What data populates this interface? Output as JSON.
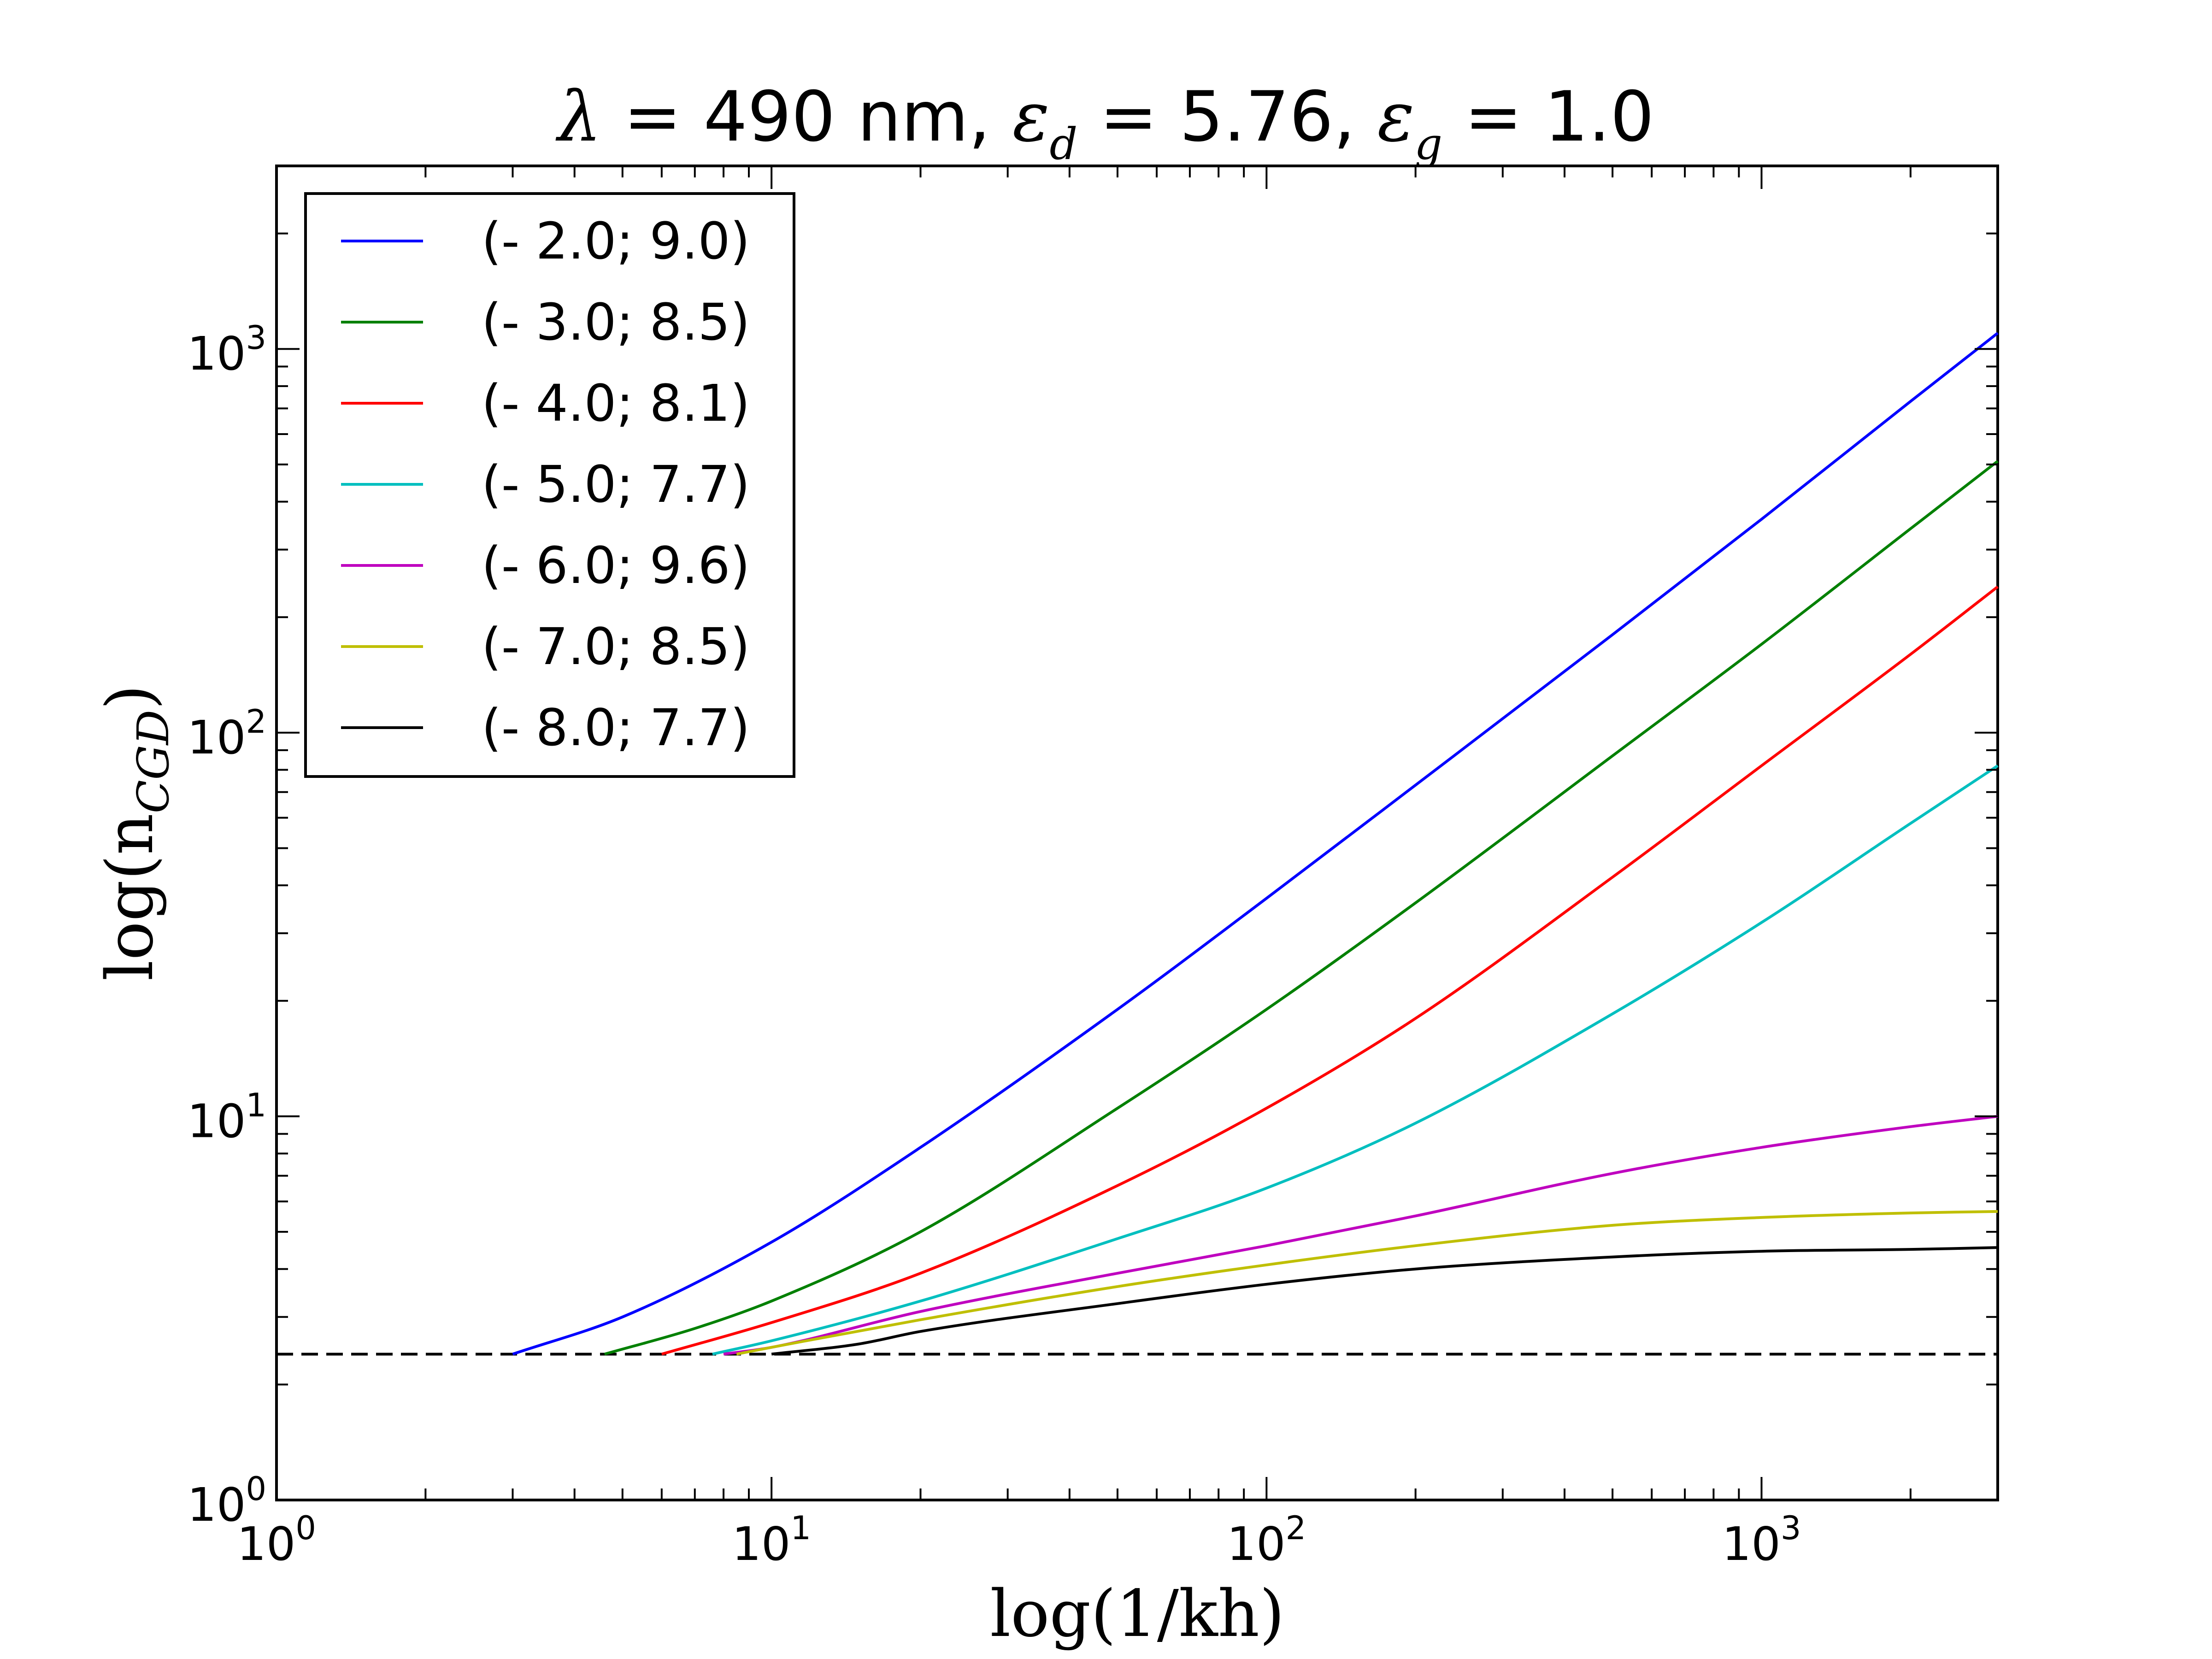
{
  "chart_data": {
    "type": "line",
    "title": {
      "lambda_symbol": "λ",
      "lambda_value": " = 490 nm, ",
      "eps_symbol": "ε",
      "eps_d_sub": "d",
      "eps_d_value": " = 5.76, ",
      "eps_g_sub": "g",
      "eps_g_value": " = 1.0"
    },
    "xlabel": "log(1/kh)",
    "ylabel": "log(n",
    "ylabel_sub": "CGD",
    "ylabel_close": ")",
    "xscale": "log",
    "yscale": "log",
    "xlim": [
      1,
      3000
    ],
    "ylim": [
      1,
      3000
    ],
    "x_ticks": [
      {
        "value": 1,
        "base": "10",
        "exp": "0"
      },
      {
        "value": 10,
        "base": "10",
        "exp": "1"
      },
      {
        "value": 100,
        "base": "10",
        "exp": "2"
      },
      {
        "value": 1000,
        "base": "10",
        "exp": "3"
      }
    ],
    "y_ticks": [
      {
        "value": 1,
        "base": "10",
        "exp": "0"
      },
      {
        "value": 10,
        "base": "10",
        "exp": "1"
      },
      {
        "value": 100,
        "base": "10",
        "exp": "2"
      },
      {
        "value": 1000,
        "base": "10",
        "exp": "3"
      }
    ],
    "grid": false,
    "legend_position": "top-left",
    "reference_line": {
      "y": 2.4,
      "style": "dashed",
      "color": "#000000"
    },
    "series": [
      {
        "name": "(- 2.0; 9.0)",
        "color": "#0000ff",
        "x": [
          3,
          5,
          10,
          20,
          50,
          100,
          200,
          500,
          1000,
          2000,
          3000
        ],
        "y": [
          2.4,
          3.0,
          4.7,
          8.3,
          19,
          37,
          73,
          180,
          360,
          730,
          1100
        ]
      },
      {
        "name": "(- 3.0; 8.5)",
        "color": "#008000",
        "x": [
          4.6,
          7,
          10,
          20,
          50,
          100,
          200,
          500,
          1000,
          2000,
          3000
        ],
        "y": [
          2.4,
          2.8,
          3.3,
          5.0,
          10.5,
          19,
          36,
          87,
          170,
          340,
          510
        ]
      },
      {
        "name": "(- 4.0; 8.1)",
        "color": "#ff0000",
        "x": [
          6,
          10,
          20,
          50,
          100,
          200,
          500,
          1000,
          2000,
          3000
        ],
        "y": [
          2.4,
          2.9,
          3.9,
          6.6,
          10.5,
          18,
          42,
          82,
          160,
          240
        ]
      },
      {
        "name": "(- 5.0; 7.7)",
        "color": "#00bfbf",
        "x": [
          7.6,
          10,
          20,
          50,
          100,
          200,
          500,
          1000,
          2000,
          3000
        ],
        "y": [
          2.4,
          2.6,
          3.3,
          4.8,
          6.5,
          9.6,
          18.5,
          32,
          58,
          82
        ]
      },
      {
        "name": "(- 6.0; 9.6)",
        "color": "#bf00bf",
        "x": [
          8,
          10,
          20,
          50,
          100,
          200,
          500,
          1000,
          2000,
          3000
        ],
        "y": [
          2.4,
          2.5,
          3.1,
          3.9,
          4.6,
          5.5,
          7.1,
          8.3,
          9.4,
          10.0
        ]
      },
      {
        "name": "(- 7.0; 8.5)",
        "color": "#bfbf00",
        "x": [
          8.5,
          10,
          20,
          50,
          100,
          200,
          500,
          1000,
          2000,
          3000
        ],
        "y": [
          2.4,
          2.5,
          2.95,
          3.6,
          4.1,
          4.6,
          5.2,
          5.45,
          5.6,
          5.65
        ]
      },
      {
        "name": "(- 8.0; 7.7)",
        "color": "#000000",
        "x": [
          10,
          15,
          20,
          50,
          100,
          200,
          500,
          1000,
          2000,
          3000
        ],
        "y": [
          2.4,
          2.55,
          2.75,
          3.25,
          3.65,
          4.0,
          4.3,
          4.45,
          4.5,
          4.55
        ]
      }
    ]
  }
}
